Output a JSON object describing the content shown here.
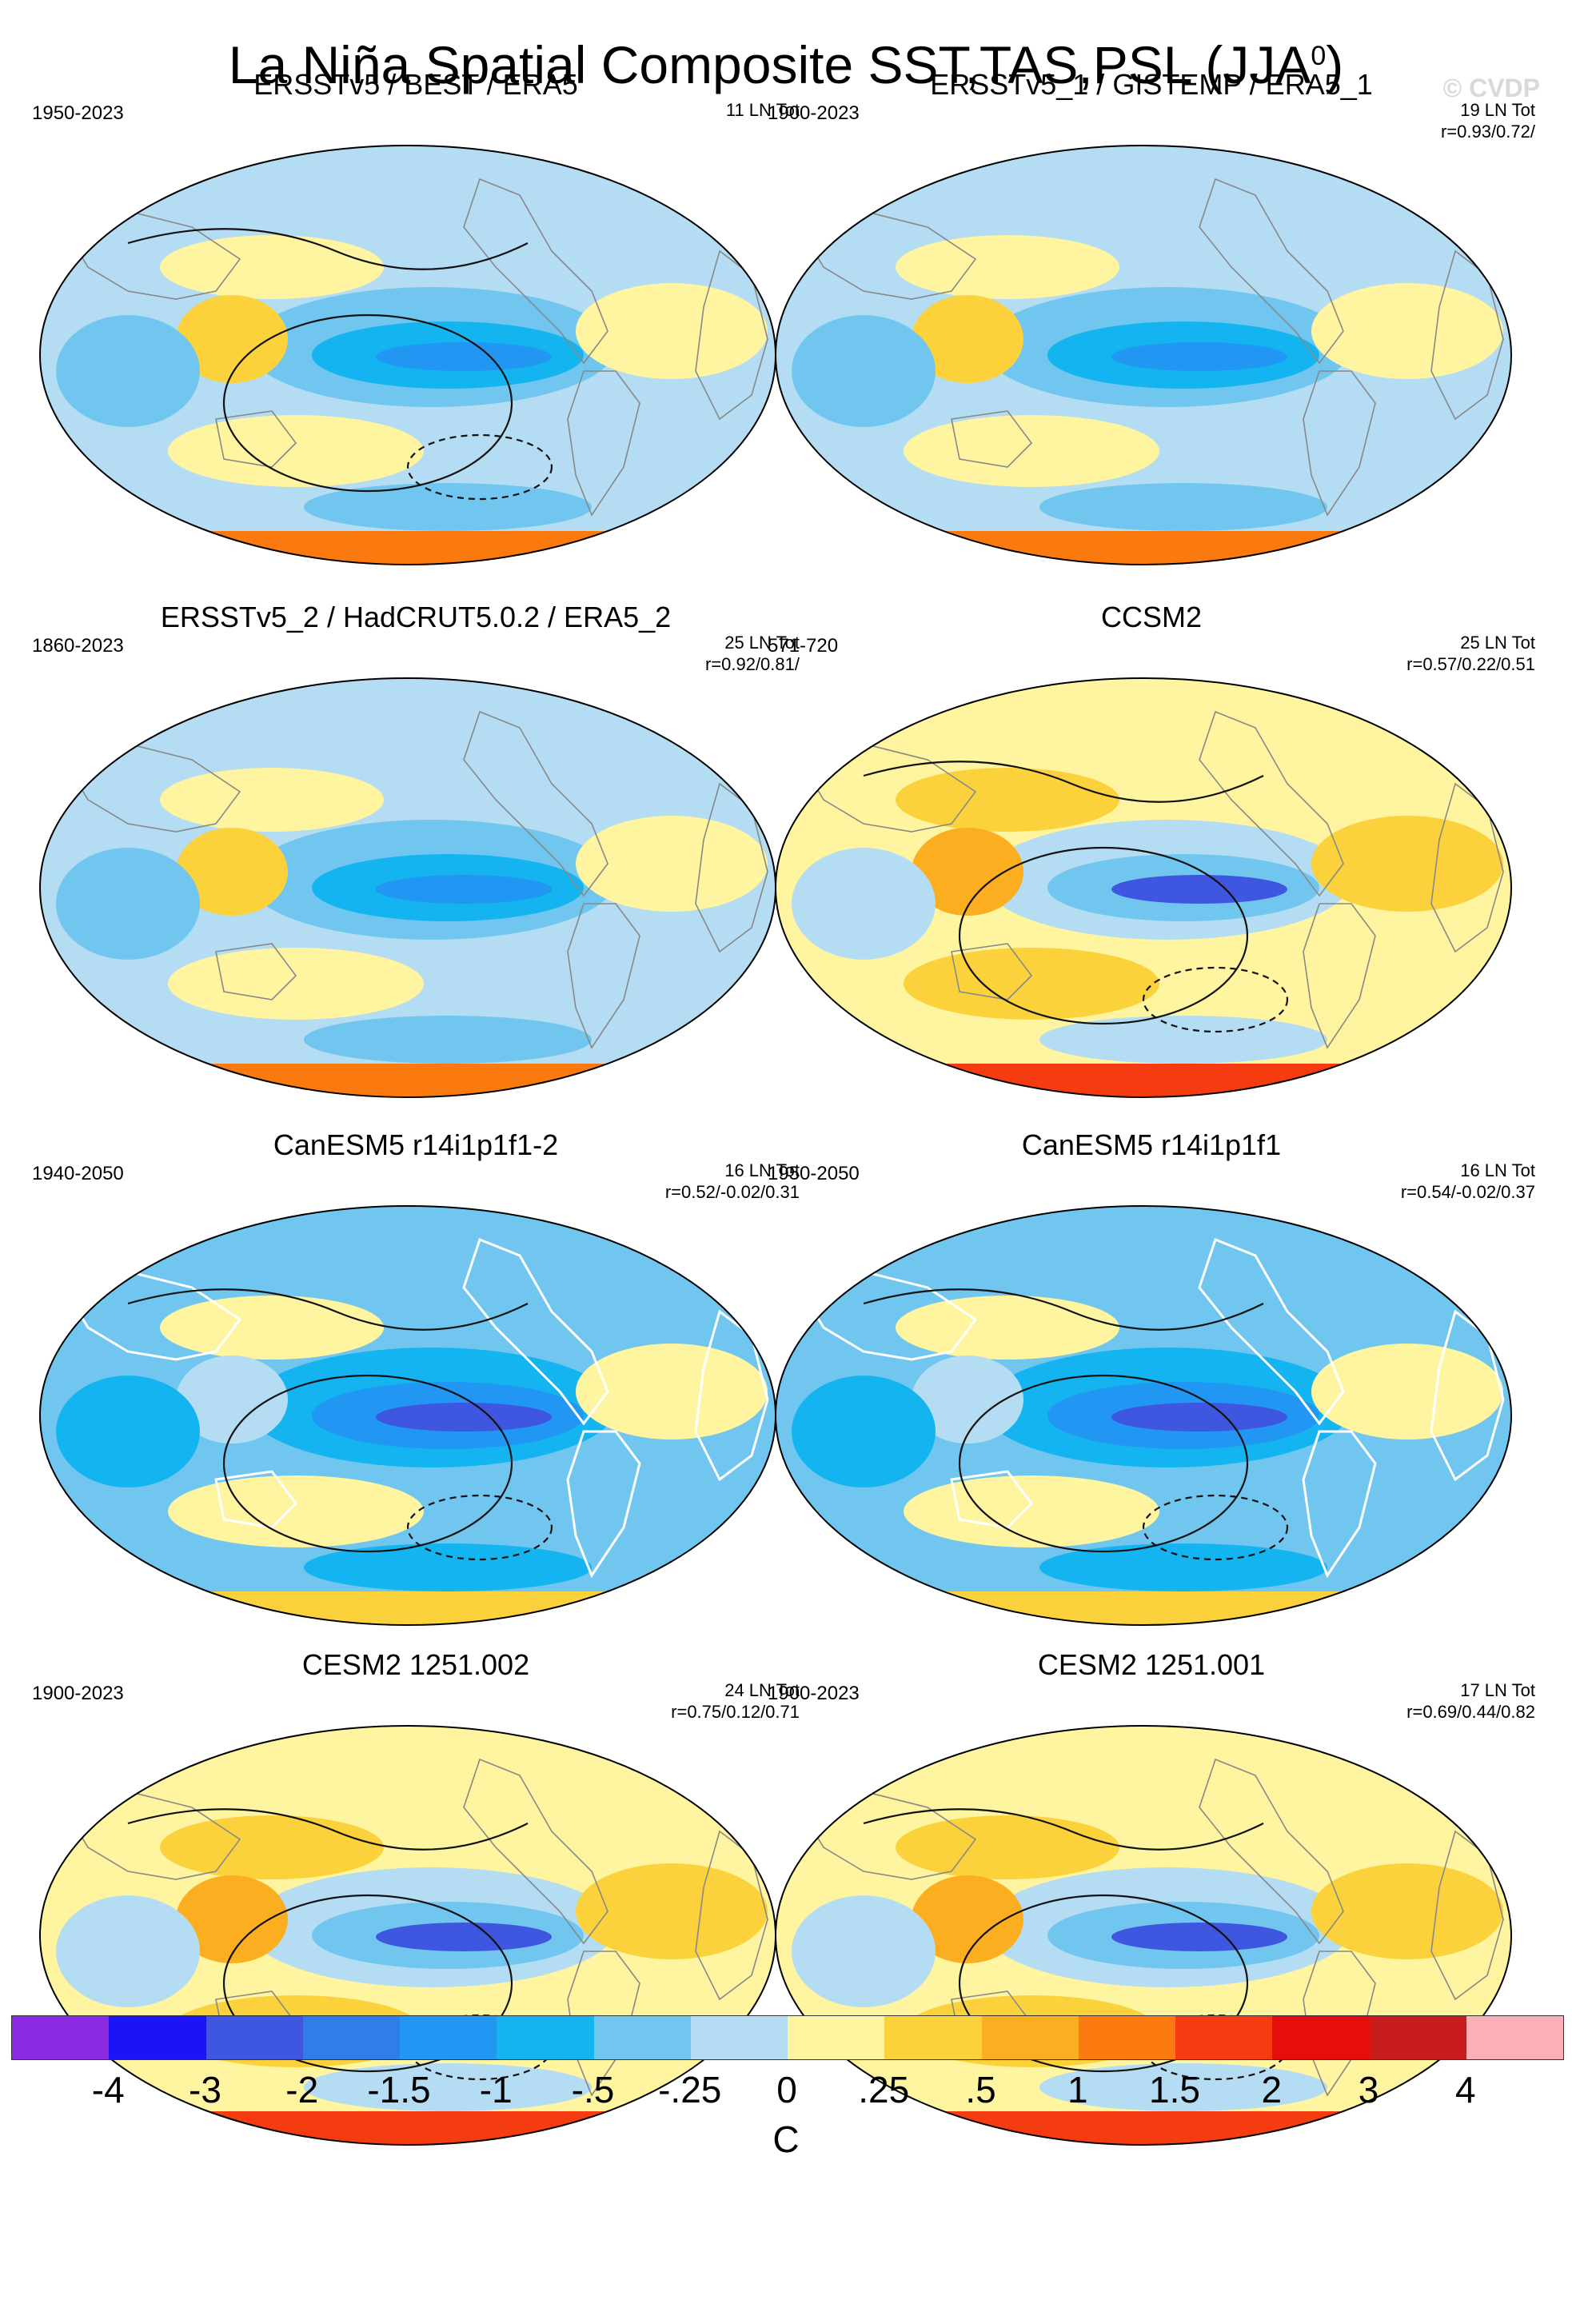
{
  "title": "La Niña Spatial Composite SST,TAS,PSL (JJA",
  "title_superscript": "0",
  "title_close": ")",
  "watermark": "© CVDP",
  "panels": [
    {
      "title": "ERSSTv5 / BEST / ERA5",
      "years": "1950-2023",
      "count": "11 LN Tot",
      "corr": "",
      "style": "obs",
      "psl": true
    },
    {
      "title": "ERSSTv5_1 / GISTEMP / ERA5_1",
      "years": "1900-2023",
      "count": "19 LN Tot",
      "corr": "r=0.93/0.72/",
      "style": "obs",
      "psl": false
    },
    {
      "title": "ERSSTv5_2 / HadCRUT5.0.2 / ERA5_2",
      "years": "1860-2023",
      "count": "25 LN Tot",
      "corr": "r=0.92/0.81/",
      "style": "obs",
      "psl": false
    },
    {
      "title": "CCSM2",
      "years": "571-720",
      "count": "25 LN Tot",
      "corr": "r=0.57/0.22/0.51",
      "style": "model",
      "psl": true
    },
    {
      "title": "CanESM5 r14i1p1f1-2",
      "years": "1940-2050",
      "count": "16 LN Tot",
      "corr": "r=0.52/-0.02/0.31",
      "style": "cold",
      "psl": true
    },
    {
      "title": "CanESM5 r14i1p1f1",
      "years": "1950-2050",
      "count": "16 LN Tot",
      "corr": "r=0.54/-0.02/0.37",
      "style": "cold",
      "psl": true
    },
    {
      "title": "CESM2 1251.002",
      "years": "1900-2023",
      "count": "24 LN Tot",
      "corr": "r=0.75/0.12/0.71",
      "style": "model",
      "psl": true
    },
    {
      "title": "CESM2 1251.001",
      "years": "1900-2023",
      "count": "17 LN Tot",
      "corr": "r=0.69/0.44/0.82",
      "style": "model",
      "psl": true
    }
  ],
  "colorbar": {
    "colors": [
      "#8a2be2",
      "#1c14f5",
      "#3f56e0",
      "#2f7de6",
      "#2196f3",
      "#14b4f0",
      "#70c6ee",
      "#b4dcf2",
      "#fff5a0",
      "#fcd23c",
      "#fbae20",
      "#fa7a10",
      "#f53b10",
      "#e60d0d",
      "#c81b1b",
      "#fbb0b8"
    ],
    "labels": [
      "-4",
      "-3",
      "-2",
      "-1.5",
      "-1",
      "-.5",
      "-.25",
      "0",
      ".25",
      ".5",
      "1",
      "1.5",
      "2",
      "3",
      "4"
    ],
    "unit": "C"
  }
}
